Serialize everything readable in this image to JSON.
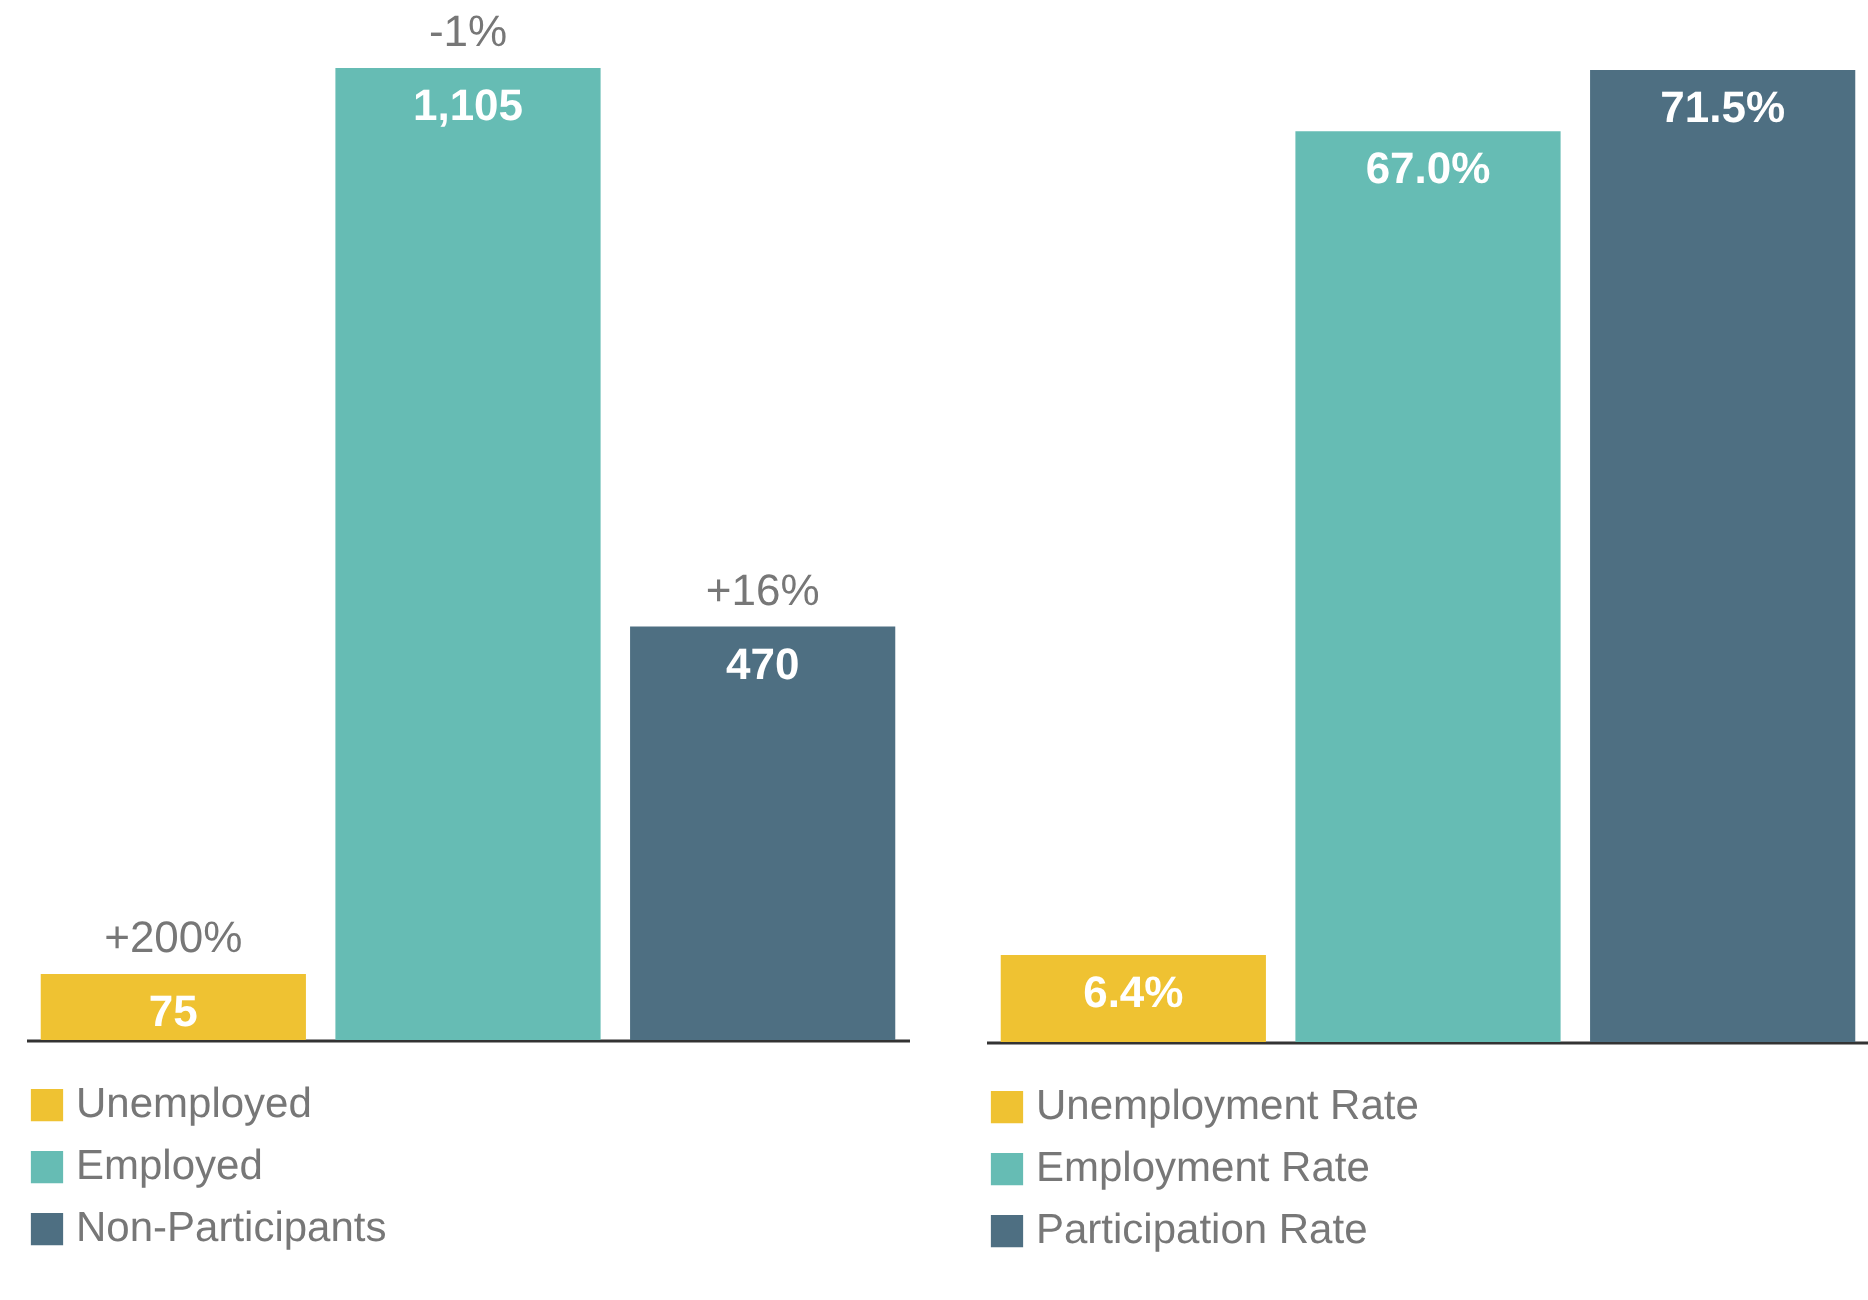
{
  "chart_data": [
    {
      "type": "bar",
      "categories": [
        null
      ],
      "tick_labels": false,
      "legend": "bottom left",
      "series": [
        {
          "name": "Unemployed",
          "color": "#efc232",
          "values": [
            75
          ],
          "value_labels": [
            "75"
          ]
        },
        {
          "name": "Employed",
          "color": "#66bcb4",
          "values": [
            1105
          ],
          "value_labels": [
            "1,105"
          ]
        },
        {
          "name": "Non-Participants",
          "color": "#4e6f82",
          "values": [
            470
          ],
          "value_labels": [
            "470"
          ]
        }
      ],
      "annotations": [
        "+200%",
        "-1%",
        "+16%"
      ]
    },
    {
      "type": "bar",
      "categories": [
        null
      ],
      "tick_labels": false,
      "legend": "bottom left",
      "series": [
        {
          "name": "Unemployment Rate",
          "color": "#efc232",
          "values": [
            6.4
          ],
          "value_labels": [
            "6.4%"
          ]
        },
        {
          "name": "Employment Rate",
          "color": "#66bcb4",
          "values": [
            67.0
          ],
          "value_labels": [
            "67.0%"
          ]
        },
        {
          "name": "Participation Rate",
          "color": "#4e6f82",
          "values": [
            71.5
          ],
          "value_labels": [
            "71.5%"
          ]
        }
      ]
    }
  ]
}
